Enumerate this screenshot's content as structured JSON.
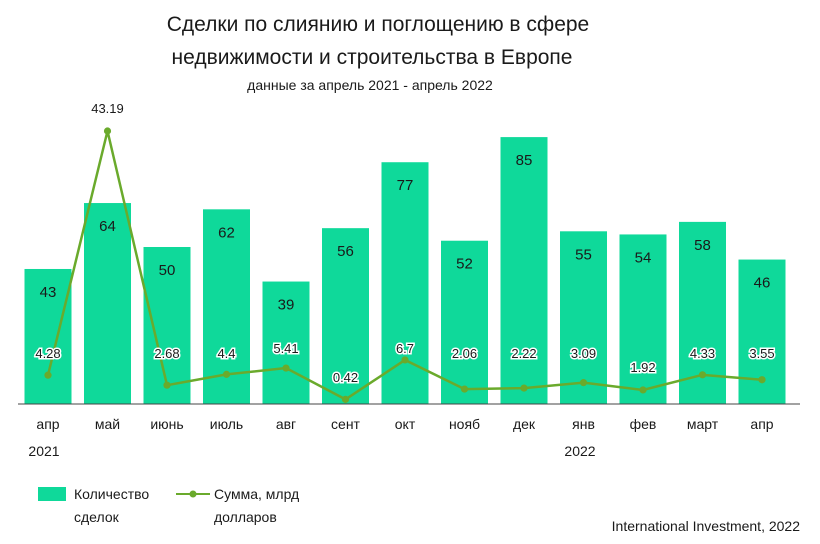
{
  "chart_data": {
    "type": "bar",
    "title_line1": "Сделки по слиянию и поглощению в сфере",
    "title_line2": "недвижимости и строительства в Европе",
    "subtitle": "данные за апрель 2021 - апрель 2022",
    "categories": [
      "апр",
      "май",
      "июнь",
      "июль",
      "авг",
      "сент",
      "окт",
      "нояб",
      "дек",
      "янв",
      "фев",
      "март",
      "апр"
    ],
    "year_labels": {
      "first": "2021",
      "jan": "2022"
    },
    "series": [
      {
        "name_line1": "Количество",
        "name_line2": "сделок",
        "type": "bar",
        "color": "#0fd99a",
        "values": [
          43,
          64,
          50,
          62,
          39,
          56,
          77,
          52,
          85,
          55,
          54,
          58,
          46
        ],
        "labels": [
          "43",
          "64",
          "50",
          "62",
          "39",
          "56",
          "77",
          "52",
          "85",
          "55",
          "54",
          "58",
          "46"
        ]
      },
      {
        "name_line1": "Сумма, млрд",
        "name_line2": "долларов",
        "type": "line",
        "color": "#6aaa2c",
        "values": [
          4.28,
          43.19,
          2.68,
          4.4,
          5.41,
          0.42,
          6.7,
          2.06,
          2.22,
          3.09,
          1.92,
          4.33,
          3.55
        ],
        "labels": [
          "4.28",
          "43.19",
          "2.68",
          "4.4",
          "5.41",
          "0.42",
          "6.7",
          "2.06",
          "2.22",
          "3.09",
          "1.92",
          "4.33",
          "3.55"
        ]
      }
    ],
    "grid": false,
    "legend": "bottom-left",
    "source": "International Investment, 2022"
  }
}
